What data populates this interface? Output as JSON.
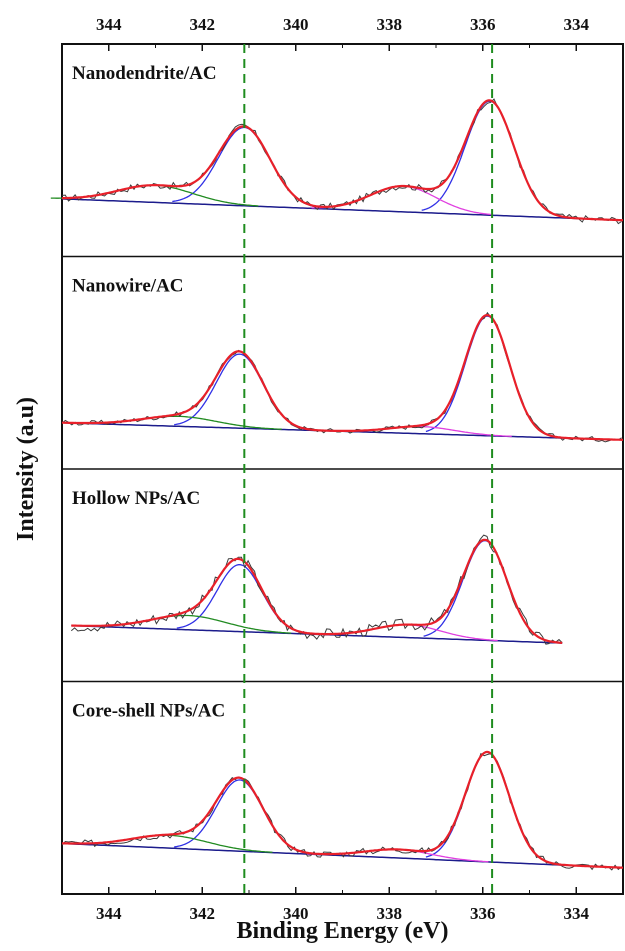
{
  "chart_data": {
    "type": "line",
    "xlabel": "Binding Energy (eV)",
    "ylabel": "Intensity (a.u)",
    "x_reversed": true,
    "xlim": [
      345,
      333
    ],
    "x_ticks": [
      344,
      342,
      340,
      338,
      336,
      334
    ],
    "reference_lines": [
      {
        "x": 341.1,
        "color": "#1e8c1e",
        "style": "dashed"
      },
      {
        "x": 335.8,
        "color": "#1e8c1e",
        "style": "dashed"
      }
    ],
    "series_colors": {
      "raw": "#3a3a3a",
      "envelope": "#e8202a",
      "baseline": "#1c1c8c",
      "peak_pd3d3_metal": "#3030e6",
      "peak_pd3d5_metal": "#3030e6",
      "peak_pd3d3_oxide": "#228b22",
      "peak_pd3d5_oxide": "#e040e0"
    },
    "panels": [
      {
        "label": "Nanodendrite/AC",
        "x_range": [
          345,
          333
        ],
        "baseline": {
          "left": 0.25,
          "right": 0.1
        },
        "peaks": [
          {
            "center": 341.1,
            "height": 0.55,
            "width": 0.55,
            "role": "peak_pd3d3_metal"
          },
          {
            "center": 335.85,
            "height": 0.8,
            "width": 0.52,
            "role": "peak_pd3d5_metal"
          },
          {
            "center": 343.0,
            "height": 0.12,
            "width": 0.8,
            "role": "peak_pd3d3_oxide"
          },
          {
            "center": 337.7,
            "height": 0.18,
            "width": 0.7,
            "role": "peak_pd3d5_oxide"
          }
        ],
        "noise": 0.025
      },
      {
        "label": "Nanowire/AC",
        "x_range": [
          345,
          333
        ],
        "baseline": {
          "left": 0.17,
          "right": 0.05
        },
        "peaks": [
          {
            "center": 341.2,
            "height": 0.52,
            "width": 0.5,
            "role": "peak_pd3d3_metal"
          },
          {
            "center": 335.9,
            "height": 0.84,
            "width": 0.47,
            "role": "peak_pd3d5_metal"
          },
          {
            "center": 342.5,
            "height": 0.07,
            "width": 0.8,
            "role": "peak_pd3d3_oxide"
          },
          {
            "center": 337.3,
            "height": 0.05,
            "width": 0.7,
            "role": "peak_pd3d5_oxide"
          }
        ],
        "noise": 0.018
      },
      {
        "label": "Hollow NPs/AC",
        "x_range": [
          344.8,
          334.3
        ],
        "baseline": {
          "left": 0.24,
          "right": 0.1
        },
        "peaks": [
          {
            "center": 341.2,
            "height": 0.47,
            "width": 0.48,
            "role": "peak_pd3d3_metal"
          },
          {
            "center": 335.95,
            "height": 0.7,
            "width": 0.47,
            "role": "peak_pd3d5_metal"
          },
          {
            "center": 342.3,
            "height": 0.1,
            "width": 0.8,
            "role": "peak_pd3d3_oxide"
          },
          {
            "center": 337.6,
            "height": 0.09,
            "width": 0.7,
            "role": "peak_pd3d5_oxide"
          }
        ],
        "noise": 0.04
      },
      {
        "label": "Core-shell NPs/AC",
        "x_range": [
          345,
          333
        ],
        "baseline": {
          "left": 0.2,
          "right": 0.03
        },
        "peaks": [
          {
            "center": 341.2,
            "height": 0.5,
            "width": 0.5,
            "role": "peak_pd3d3_metal"
          },
          {
            "center": 335.9,
            "height": 0.77,
            "width": 0.47,
            "role": "peak_pd3d5_metal"
          },
          {
            "center": 342.7,
            "height": 0.09,
            "width": 0.8,
            "role": "peak_pd3d3_oxide"
          },
          {
            "center": 337.8,
            "height": 0.06,
            "width": 0.7,
            "role": "peak_pd3d5_oxide"
          }
        ],
        "noise": 0.025
      }
    ]
  }
}
